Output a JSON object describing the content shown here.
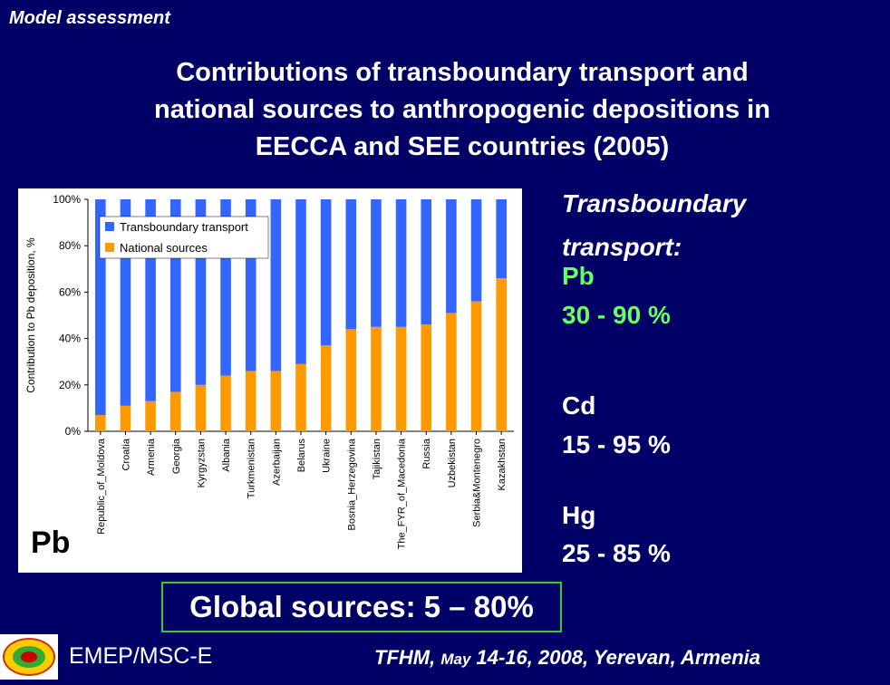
{
  "header": {
    "section_tag": "Model assessment"
  },
  "slide": {
    "title_line1": "Contributions of transboundary transport and",
    "title_line2": "national sources to anthropogenic depositions in",
    "title_line3": "EECCA and SEE countries (2005)"
  },
  "chart_data": {
    "type": "bar",
    "stacked": true,
    "percent": true,
    "ylabel": "Contribution to Pb deposition, %",
    "ylim": [
      0,
      100
    ],
    "yticks": [
      "0%",
      "20%",
      "40%",
      "60%",
      "80%",
      "100%"
    ],
    "grid": false,
    "legend_position": "top-left",
    "corner_label": "Pb",
    "categories": [
      "Republic_of_Moldova",
      "Croatia",
      "Armenia",
      "Georgia",
      "Kyrgyzstan",
      "Albania",
      "Turkmenistan",
      "Azerbaijan",
      "Belarus",
      "Ukraine",
      "Bosnia_Herzegovina",
      "Tajikistan",
      "The_FYR_of_Macedonia",
      "Russia",
      "Uzbekistan",
      "Serbia&Montenegro",
      "Kazakhstan"
    ],
    "series": [
      {
        "name": "Transboundary transport",
        "color": "#3366ff",
        "values": [
          93,
          89,
          87,
          83,
          80,
          76,
          74,
          74,
          71,
          63,
          56,
          55,
          55,
          54,
          49,
          44,
          34
        ]
      },
      {
        "name": "National sources",
        "color": "#ff9900",
        "values": [
          7,
          11,
          13,
          17,
          20,
          24,
          26,
          26,
          29,
          37,
          44,
          45,
          45,
          46,
          51,
          56,
          66
        ]
      }
    ]
  },
  "side_text": {
    "heading_line1": "Transboundary",
    "heading_line2": "transport:",
    "pb_label": "Pb",
    "pb_range": "30 - 90 %",
    "cd_label": "Cd",
    "cd_range": "15 - 95 %",
    "hg_label": "Hg",
    "hg_range": "25 - 85 %"
  },
  "global_box": {
    "text": "Global sources: 5 – 80%"
  },
  "footer": {
    "org": "EMEP/MSC-E",
    "event_part1": "TFHM, ",
    "event_month": "May",
    "event_part2": " 14-16, 2008, Yerevan, Armenia"
  },
  "colors": {
    "background": "#000066",
    "accent_green": "#66ff66",
    "box_border": "#33cc33"
  }
}
